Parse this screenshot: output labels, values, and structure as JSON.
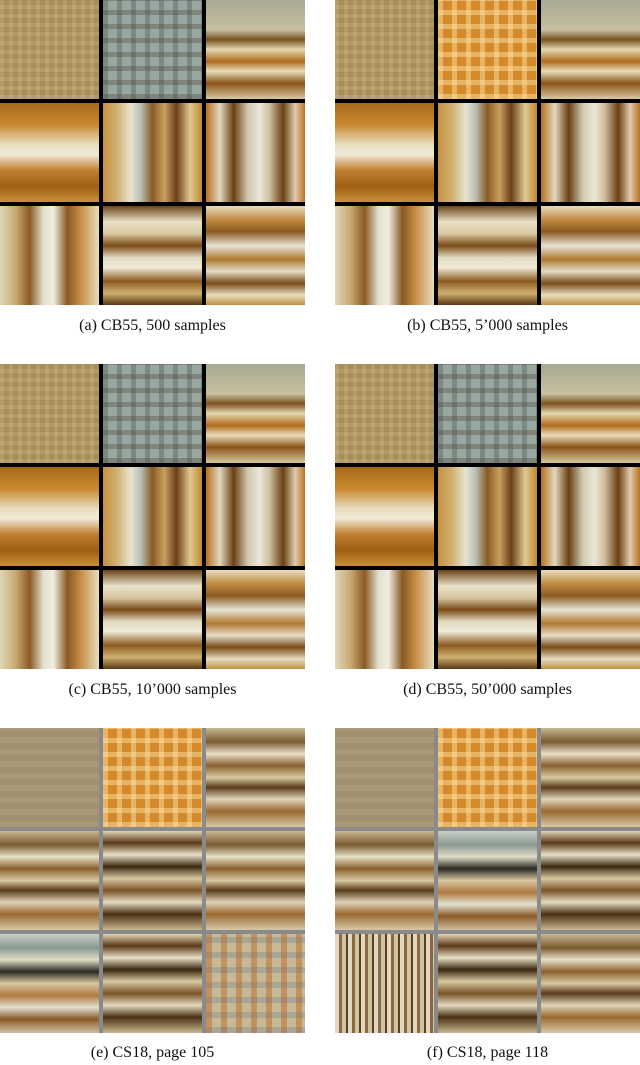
{
  "figure": {
    "panels": [
      {
        "id": "a",
        "caption": "(a) CB55, 500 samples",
        "border": "black",
        "tiles": [
          "plain-tan",
          "blue-gray-check",
          "tan-stripes-lower",
          "orange-blotch-h",
          "vertical-bars",
          "vertical-bars-dark",
          "vertical-bars-light",
          "horizontal-blotches",
          "horizontal-stripes"
        ]
      },
      {
        "id": "b",
        "caption": "(b) CB55, 5’000 samples",
        "border": "black",
        "tiles": [
          "plain-tan",
          "orange-check",
          "tan-stripes-lower",
          "orange-blotch-h",
          "vertical-bars",
          "vertical-bars-dark",
          "vertical-bars-light",
          "horizontal-blotches",
          "horizontal-stripes"
        ]
      },
      {
        "id": "c",
        "caption": "(c) CB55, 10’000 samples",
        "border": "black",
        "tiles": [
          "plain-tan",
          "blue-gray-check",
          "tan-stripes-lower",
          "orange-blotch-h",
          "vertical-bars",
          "vertical-bars-dark",
          "vertical-bars-light",
          "horizontal-blotches",
          "horizontal-stripes"
        ]
      },
      {
        "id": "d",
        "caption": "(d) CB55, 50’000 samples",
        "border": "black",
        "tiles": [
          "plain-tan",
          "blue-gray-check",
          "tan-stripes-lower",
          "orange-blotch-h",
          "vertical-bars",
          "vertical-bars-dark",
          "vertical-bars-light",
          "horizontal-blotches",
          "horizontal-stripes"
        ]
      },
      {
        "id": "e",
        "caption": "(e) CS18, page 105",
        "border": "gray",
        "tiles": [
          "plain-taupe",
          "orange-check",
          "brown-bands",
          "brown-bands",
          "brown-bands-dark",
          "brown-bands",
          "blue-bands",
          "brown-bands-dark",
          "blue-orange-check"
        ]
      },
      {
        "id": "f",
        "caption": "(f) CS18, page 118",
        "border": "gray",
        "tiles": [
          "plain-taupe",
          "orange-check",
          "brown-bands",
          "brown-bands",
          "blue-bands",
          "brown-bands-dark",
          "vertical-thin",
          "brown-bands-dark",
          "brown-bands"
        ]
      }
    ]
  }
}
